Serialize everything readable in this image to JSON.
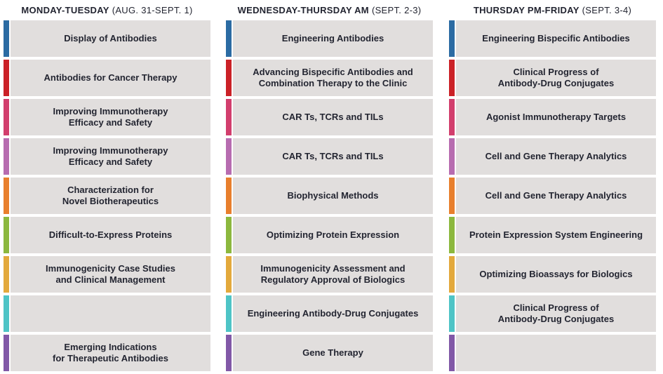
{
  "colors": {
    "cell_background": "#e1dedd",
    "text": "#232531",
    "tracks": [
      "#2b6ba3",
      "#cb2127",
      "#d23e6d",
      "#b76cb0",
      "#e87f2d",
      "#8cb83e",
      "#e3a93c",
      "#4ec4c6",
      "#8158a7"
    ]
  },
  "columns": [
    {
      "header": {
        "days": "MONDAY-TUESDAY",
        "dates": "(AUG. 31-SEPT. 1)"
      },
      "rows": [
        {
          "text": "Display of Antibodies"
        },
        {
          "text": "Antibodies for Cancer Therapy"
        },
        {
          "text": "Improving Immunotherapy\nEfficacy and Safety"
        },
        {
          "text": "Improving Immunotherapy\nEfficacy and Safety"
        },
        {
          "text": "Characterization for\nNovel Biotherapeutics"
        },
        {
          "text": "Difficult-to-Express Proteins"
        },
        {
          "text": "Immunogenicity Case Studies\nand Clinical Management"
        },
        {
          "text": ""
        },
        {
          "text": "Emerging Indications\nfor Therapeutic Antibodies"
        }
      ]
    },
    {
      "header": {
        "days": "WEDNESDAY-THURSDAY AM",
        "dates": "(SEPT. 2-3)"
      },
      "rows": [
        {
          "text": "Engineering Antibodies"
        },
        {
          "text": "Advancing Bispecific Antibodies and\nCombination Therapy to the Clinic"
        },
        {
          "text": "CAR Ts, TCRs and TILs"
        },
        {
          "text": "CAR Ts, TCRs and TILs"
        },
        {
          "text": "Biophysical Methods"
        },
        {
          "text": "Optimizing Protein Expression"
        },
        {
          "text": "Immunogenicity Assessment and\nRegulatory Approval of Biologics"
        },
        {
          "text": "Engineering Antibody-Drug Conjugates"
        },
        {
          "text": "Gene Therapy"
        }
      ]
    },
    {
      "header": {
        "days": "THURSDAY PM-FRIDAY",
        "dates": "(SEPT. 3-4)"
      },
      "rows": [
        {
          "text": "Engineering Bispecific Antibodies"
        },
        {
          "text": "Clinical Progress of\nAntibody-Drug Conjugates"
        },
        {
          "text": "Agonist Immunotherapy Targets"
        },
        {
          "text": "Cell and Gene Therapy Analytics"
        },
        {
          "text": "Cell and Gene Therapy Analytics"
        },
        {
          "text": "Protein Expression System Engineering"
        },
        {
          "text": "Optimizing Bioassays for Biologics"
        },
        {
          "text": "Clinical Progress of\nAntibody-Drug Conjugates"
        },
        {
          "text": ""
        }
      ]
    }
  ]
}
